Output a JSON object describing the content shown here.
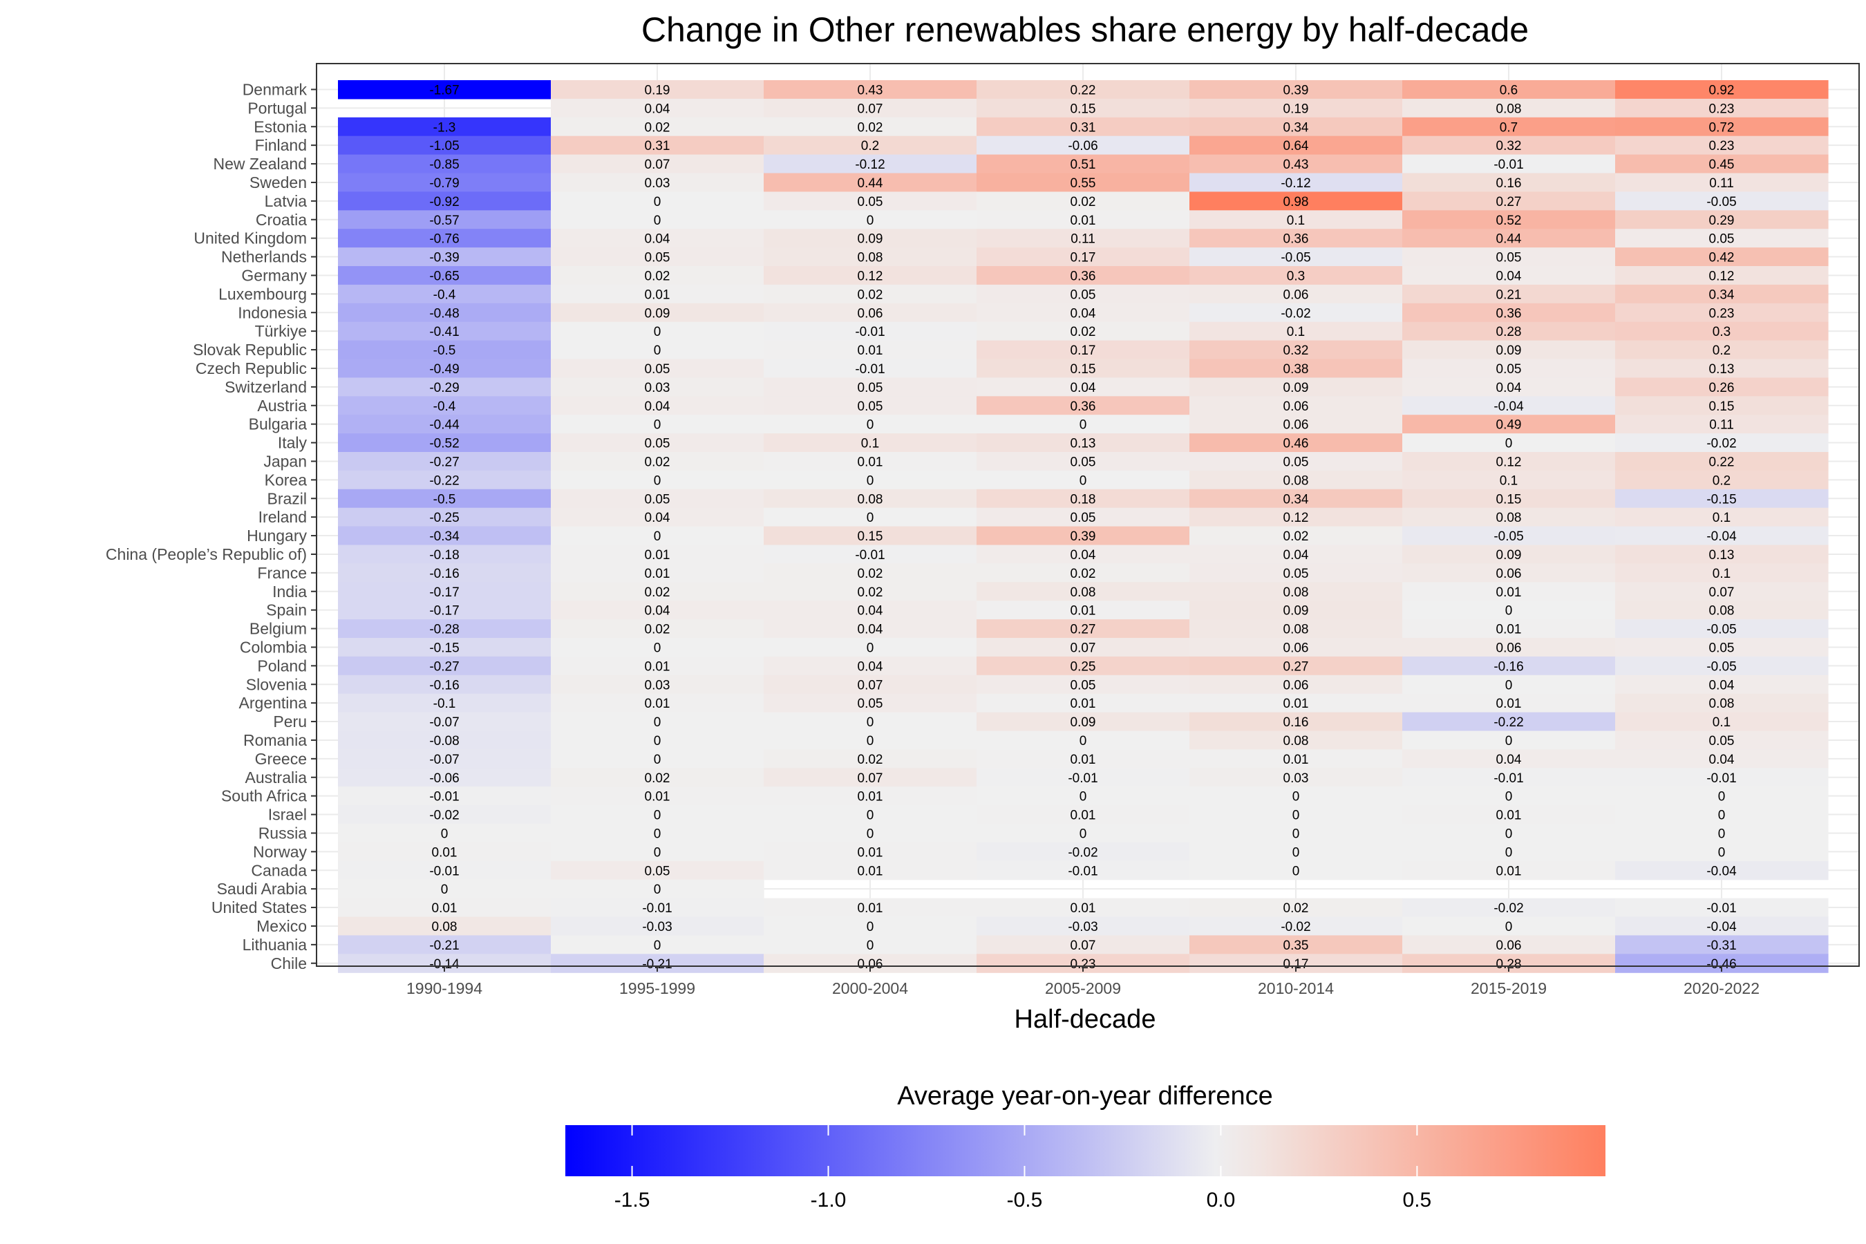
{
  "chart_data": {
    "type": "heatmap",
    "title": "Change in Other renewables share energy by half-decade",
    "xlabel": "Half-decade",
    "ylabel": "",
    "x_categories": [
      "1990-1994",
      "1995-1999",
      "2000-2004",
      "2005-2009",
      "2010-2014",
      "2015-2019",
      "2020-2022"
    ],
    "y_categories": [
      "Denmark",
      "Portugal",
      "Estonia",
      "Finland",
      "New Zealand",
      "Sweden",
      "Latvia",
      "Croatia",
      "United Kingdom",
      "Netherlands",
      "Germany",
      "Luxembourg",
      "Indonesia",
      "Türkiye",
      "Slovak Republic",
      "Czech Republic",
      "Switzerland",
      "Austria",
      "Bulgaria",
      "Italy",
      "Japan",
      "Korea",
      "Brazil",
      "Ireland",
      "Hungary",
      "China (People’s Republic of)",
      "France",
      "India",
      "Spain",
      "Belgium",
      "Colombia",
      "Poland",
      "Slovenia",
      "Argentina",
      "Peru",
      "Romania",
      "Greece",
      "Australia",
      "South Africa",
      "Israel",
      "Russia",
      "Norway",
      "Canada",
      "Saudi Arabia",
      "United States",
      "Mexico",
      "Lithuania",
      "Chile"
    ],
    "values": [
      [
        -1.67,
        0.19,
        0.43,
        0.22,
        0.39,
        0.6,
        0.92
      ],
      [
        null,
        0.04,
        0.07,
        0.15,
        0.19,
        0.08,
        0.23
      ],
      [
        -1.3,
        0.02,
        0.02,
        0.31,
        0.34,
        0.7,
        0.72
      ],
      [
        -1.05,
        0.31,
        0.2,
        -0.06,
        0.64,
        0.32,
        0.23
      ],
      [
        -0.85,
        0.07,
        -0.12,
        0.51,
        0.43,
        -0.01,
        0.45
      ],
      [
        -0.79,
        0.03,
        0.44,
        0.55,
        -0.12,
        0.16,
        0.11
      ],
      [
        -0.92,
        0,
        0.05,
        0.02,
        0.98,
        0.27,
        -0.05
      ],
      [
        -0.57,
        0,
        0,
        0.01,
        0.1,
        0.52,
        0.29
      ],
      [
        -0.76,
        0.04,
        0.09,
        0.11,
        0.36,
        0.44,
        0.05
      ],
      [
        -0.39,
        0.05,
        0.08,
        0.17,
        -0.05,
        0.05,
        0.42
      ],
      [
        -0.65,
        0.02,
        0.12,
        0.36,
        0.3,
        0.04,
        0.12
      ],
      [
        -0.4,
        0.01,
        0.02,
        0.05,
        0.06,
        0.21,
        0.34
      ],
      [
        -0.48,
        0.09,
        0.06,
        0.04,
        -0.02,
        0.36,
        0.23
      ],
      [
        -0.41,
        0,
        -0.01,
        0.02,
        0.1,
        0.28,
        0.3
      ],
      [
        -0.5,
        0,
        0.01,
        0.17,
        0.32,
        0.09,
        0.2
      ],
      [
        -0.49,
        0.05,
        -0.01,
        0.15,
        0.38,
        0.05,
        0.13
      ],
      [
        -0.29,
        0.03,
        0.05,
        0.04,
        0.09,
        0.04,
        0.26
      ],
      [
        -0.4,
        0.04,
        0.05,
        0.36,
        0.06,
        -0.04,
        0.15
      ],
      [
        -0.44,
        0,
        0,
        0,
        0.06,
        0.49,
        0.11
      ],
      [
        -0.52,
        0.05,
        0.1,
        0.13,
        0.46,
        0,
        -0.02
      ],
      [
        -0.27,
        0.02,
        0.01,
        0.05,
        0.05,
        0.12,
        0.22
      ],
      [
        -0.22,
        0,
        0,
        0,
        0.08,
        0.1,
        0.2
      ],
      [
        -0.5,
        0.05,
        0.08,
        0.18,
        0.34,
        0.15,
        -0.15
      ],
      [
        -0.25,
        0.04,
        0,
        0.05,
        0.12,
        0.08,
        0.1
      ],
      [
        -0.34,
        0,
        0.15,
        0.39,
        0.02,
        -0.05,
        -0.04
      ],
      [
        -0.18,
        0.01,
        -0.01,
        0.04,
        0.04,
        0.09,
        0.13
      ],
      [
        -0.16,
        0.01,
        0.02,
        0.02,
        0.05,
        0.06,
        0.1
      ],
      [
        -0.17,
        0.02,
        0.02,
        0.08,
        0.08,
        0.01,
        0.07
      ],
      [
        -0.17,
        0.04,
        0.04,
        0.01,
        0.09,
        0,
        0.08
      ],
      [
        -0.28,
        0.02,
        0.04,
        0.27,
        0.08,
        0.01,
        -0.05
      ],
      [
        -0.15,
        0,
        0,
        0.07,
        0.06,
        0.06,
        0.05
      ],
      [
        -0.27,
        0.01,
        0.04,
        0.25,
        0.27,
        -0.16,
        -0.05
      ],
      [
        -0.16,
        0.03,
        0.07,
        0.05,
        0.06,
        0,
        0.04
      ],
      [
        -0.1,
        0.01,
        0.05,
        0.01,
        0.01,
        0.01,
        0.08
      ],
      [
        -0.07,
        0,
        0,
        0.09,
        0.16,
        -0.22,
        0.1
      ],
      [
        -0.08,
        0,
        0,
        0,
        0.08,
        0,
        0.05
      ],
      [
        -0.07,
        0,
        0.02,
        0.01,
        0.01,
        0.04,
        0.04
      ],
      [
        -0.06,
        0.02,
        0.07,
        -0.01,
        0.03,
        -0.01,
        -0.01
      ],
      [
        -0.01,
        0.01,
        0.01,
        0,
        0,
        0,
        0
      ],
      [
        -0.02,
        0,
        0,
        0.01,
        0,
        0.01,
        0
      ],
      [
        0,
        0,
        0,
        0,
        0,
        0,
        0
      ],
      [
        0.01,
        0,
        0.01,
        -0.02,
        0,
        0,
        0
      ],
      [
        -0.01,
        0.05,
        0.01,
        -0.01,
        0,
        0.01,
        -0.04
      ],
      [
        0,
        0,
        null,
        null,
        null,
        null,
        null
      ],
      [
        0.01,
        -0.01,
        0.01,
        0.01,
        0.02,
        -0.02,
        -0.01
      ],
      [
        0.08,
        -0.03,
        0,
        -0.03,
        -0.02,
        0,
        -0.04
      ],
      [
        -0.21,
        0,
        0,
        0.07,
        0.35,
        0.06,
        -0.31
      ],
      [
        -0.14,
        -0.21,
        0.06,
        0.23,
        0.17,
        0.28,
        -0.46
      ]
    ],
    "color_scale": {
      "low_color": "#0000ff",
      "mid_color": "#f0f0f0",
      "high_color": "#ff7f5f",
      "min": -1.67,
      "mid": 0,
      "max": 0.98
    },
    "legend": {
      "title": "Average year-on-year difference",
      "ticks": [
        -1.5,
        -1.0,
        -0.5,
        0.0,
        0.5
      ],
      "tick_labels": [
        "-1.5",
        "-1.0",
        "-0.5",
        "0.0",
        "0.5"
      ],
      "position": "bottom"
    },
    "grid": true
  }
}
